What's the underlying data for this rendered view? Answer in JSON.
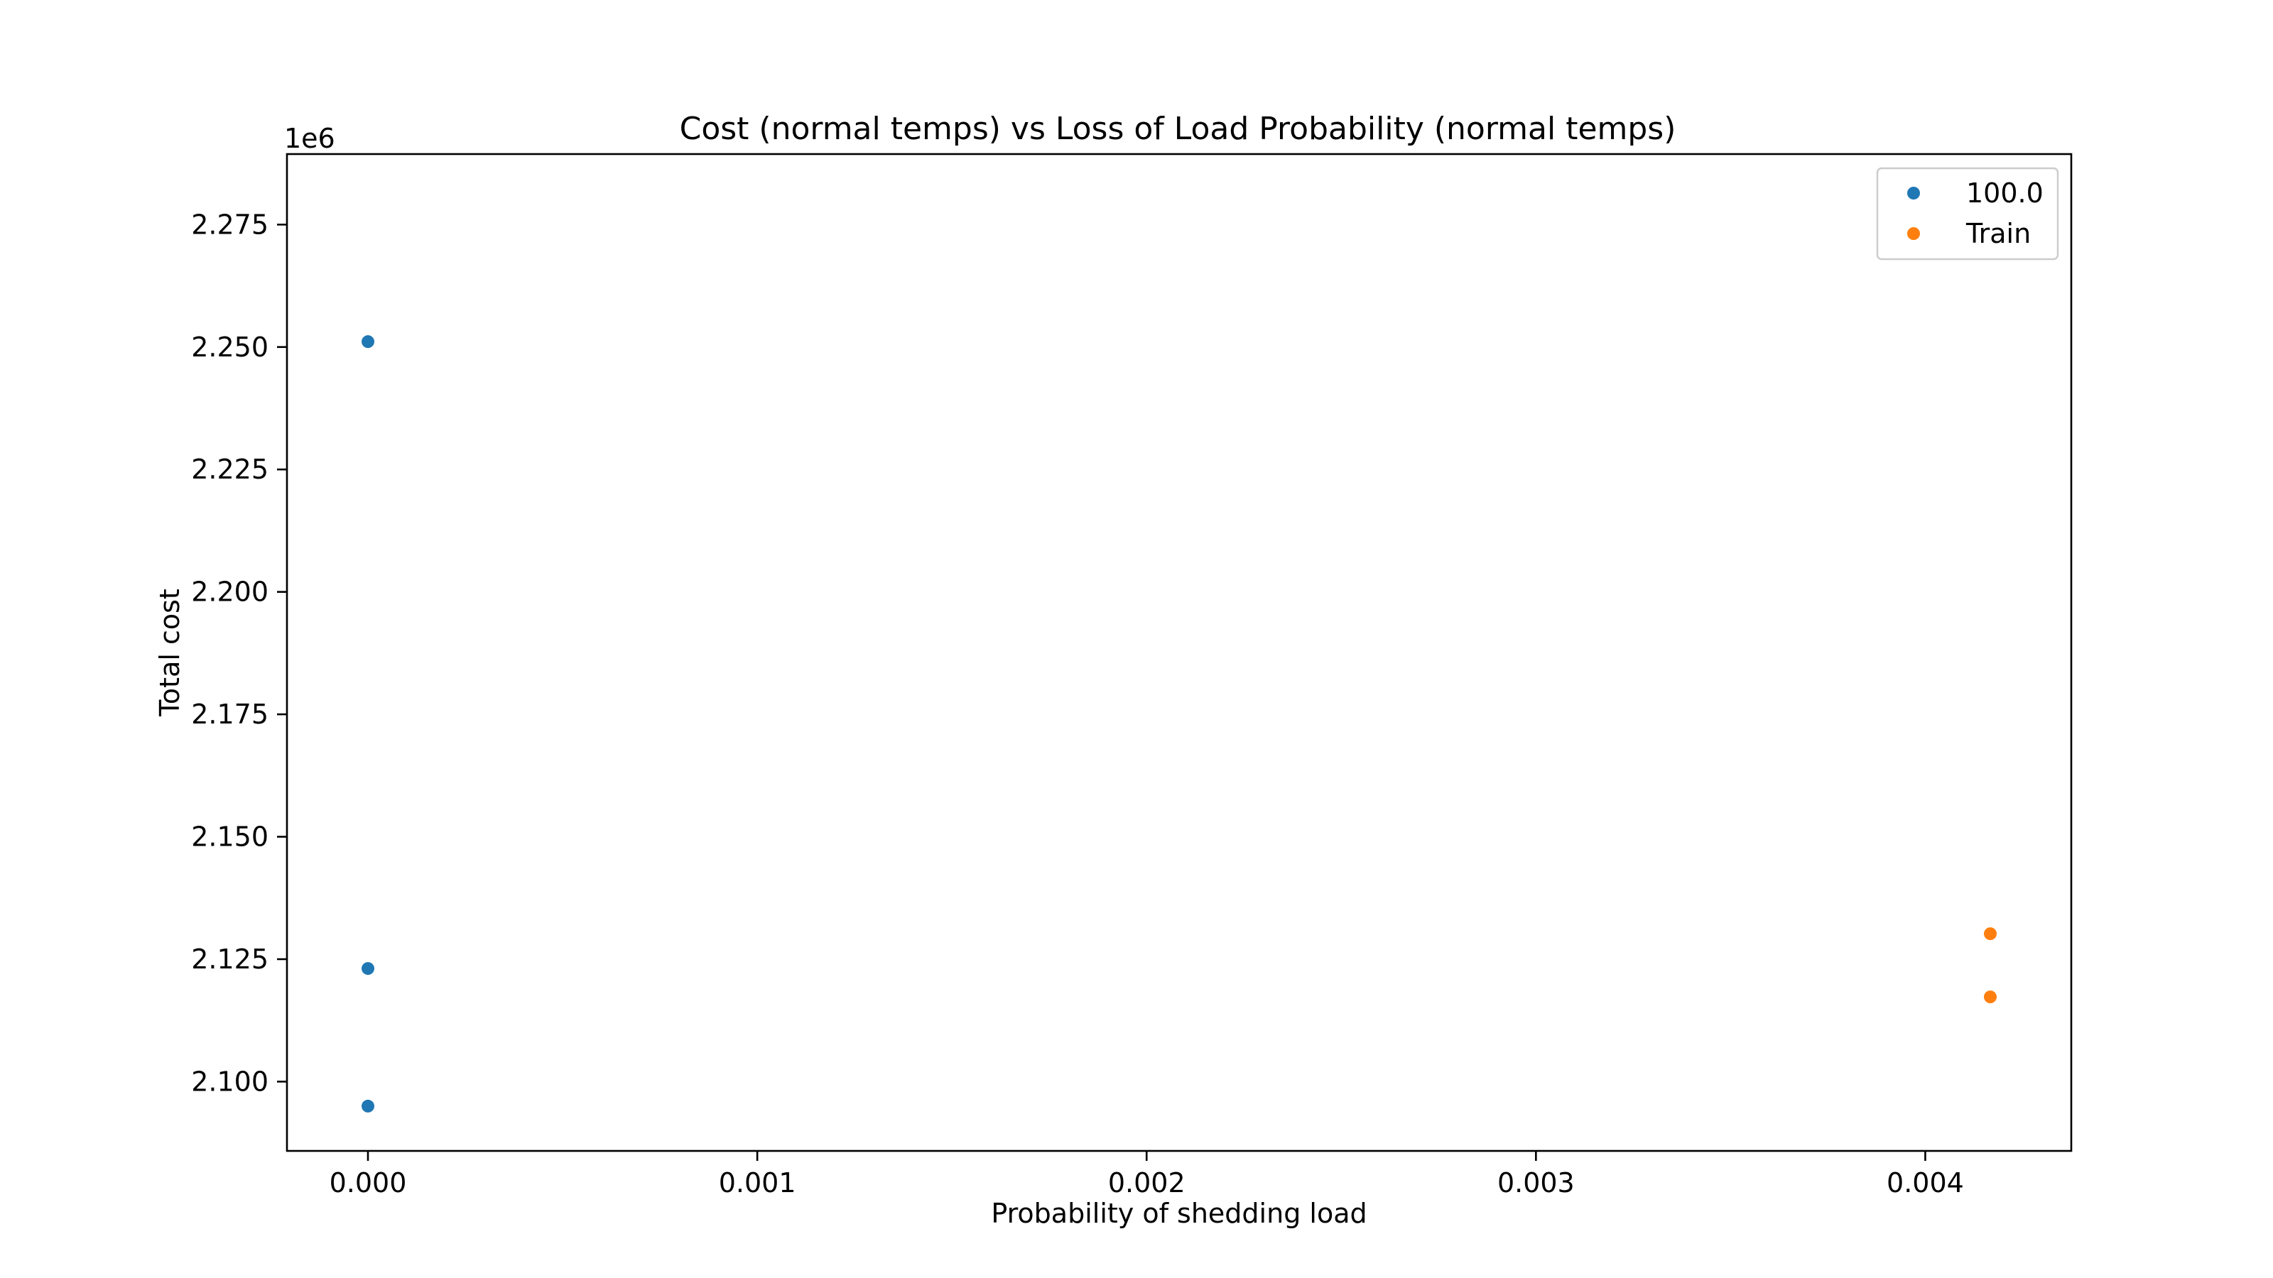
{
  "chart_data": {
    "type": "scatter",
    "title": "Cost (normal temps) vs Loss of Load Probability (normal temps)",
    "xlabel": "Probability of shedding load",
    "ylabel": "Total cost",
    "y_offset_label": "1e6",
    "xlim": [
      -0.000208,
      0.004375
    ],
    "ylim": [
      2085850,
      2289400
    ],
    "x_ticks": [
      0.0,
      0.001,
      0.002,
      0.003,
      0.004
    ],
    "x_tick_labels": [
      "0.000",
      "0.001",
      "0.002",
      "0.003",
      "0.004"
    ],
    "y_ticks": [
      2100000,
      2125000,
      2150000,
      2175000,
      2200000,
      2225000,
      2250000,
      2275000
    ],
    "y_tick_labels": [
      "2.100",
      "2.125",
      "2.150",
      "2.175",
      "2.200",
      "2.225",
      "2.250",
      "2.275"
    ],
    "grid": false,
    "legend_position": "top-right",
    "series": [
      {
        "name": "100.0",
        "color": "#1f77b4",
        "points": [
          {
            "x": 0.0,
            "y": 2251100
          },
          {
            "x": 0.0,
            "y": 2123100
          },
          {
            "x": 0.0,
            "y": 2095000
          }
        ]
      },
      {
        "name": "Train",
        "color": "#ff7f0e",
        "points": [
          {
            "x": 0.004167,
            "y": 2130200
          },
          {
            "x": 0.004167,
            "y": 2117300
          }
        ]
      }
    ]
  }
}
